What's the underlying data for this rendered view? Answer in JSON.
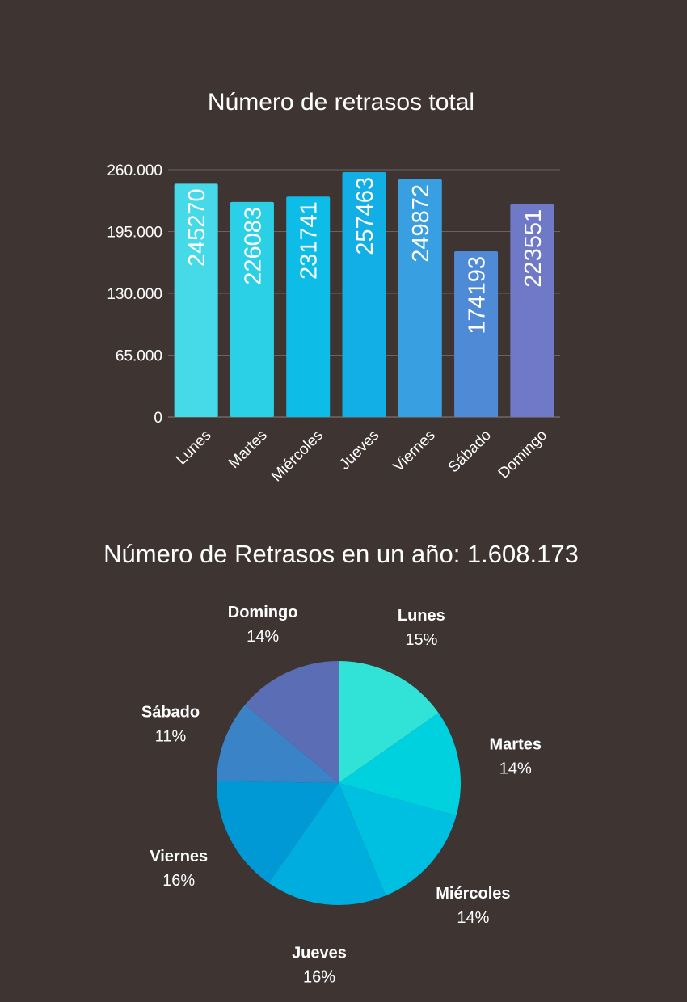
{
  "chart_data": [
    {
      "type": "bar",
      "title": "Número de retrasos total",
      "xlabel": "",
      "ylabel": "",
      "categories": [
        "Lunes",
        "Martes",
        "Miércoles",
        "Jueves",
        "Viernes",
        "Sábado",
        "Domingo"
      ],
      "values": [
        245270,
        226083,
        231741,
        257463,
        249872,
        174193,
        223551
      ],
      "value_labels": [
        "245270",
        "226083",
        "231741",
        "257463",
        "249872",
        "174193",
        "223551"
      ],
      "ylim": [
        0,
        260000
      ],
      "yticks": [
        0,
        65000,
        130000,
        195000,
        260000
      ],
      "ytick_labels": [
        "0",
        "65.000",
        "130.000",
        "195.000",
        "260.000"
      ],
      "grid": true,
      "legend": "none",
      "colors": {
        "gradient_start": "#45dbe9",
        "gradient_end": "#6f79c8",
        "bars": [
          "#46d9e8",
          "#2bcfe6",
          "#0dbde8",
          "#12aee6",
          "#389fe0",
          "#4f8ad6",
          "#6f79c8"
        ]
      }
    },
    {
      "type": "pie",
      "title": "Número de Retrasos en un año: 1.608.173",
      "categories": [
        "Lunes",
        "Martes",
        "Miércoles",
        "Jueves",
        "Viernes",
        "Sábado",
        "Domingo"
      ],
      "values": [
        245270,
        226083,
        231741,
        257463,
        249872,
        174193,
        223551
      ],
      "percent_labels": [
        "15%",
        "14%",
        "14%",
        "16%",
        "16%",
        "11%",
        "14%"
      ],
      "legend": "none",
      "colors": [
        "#30e3d6",
        "#00d1df",
        "#00c0e1",
        "#00addf",
        "#0099d6",
        "#3b83c7",
        "#5b6db4"
      ]
    }
  ]
}
